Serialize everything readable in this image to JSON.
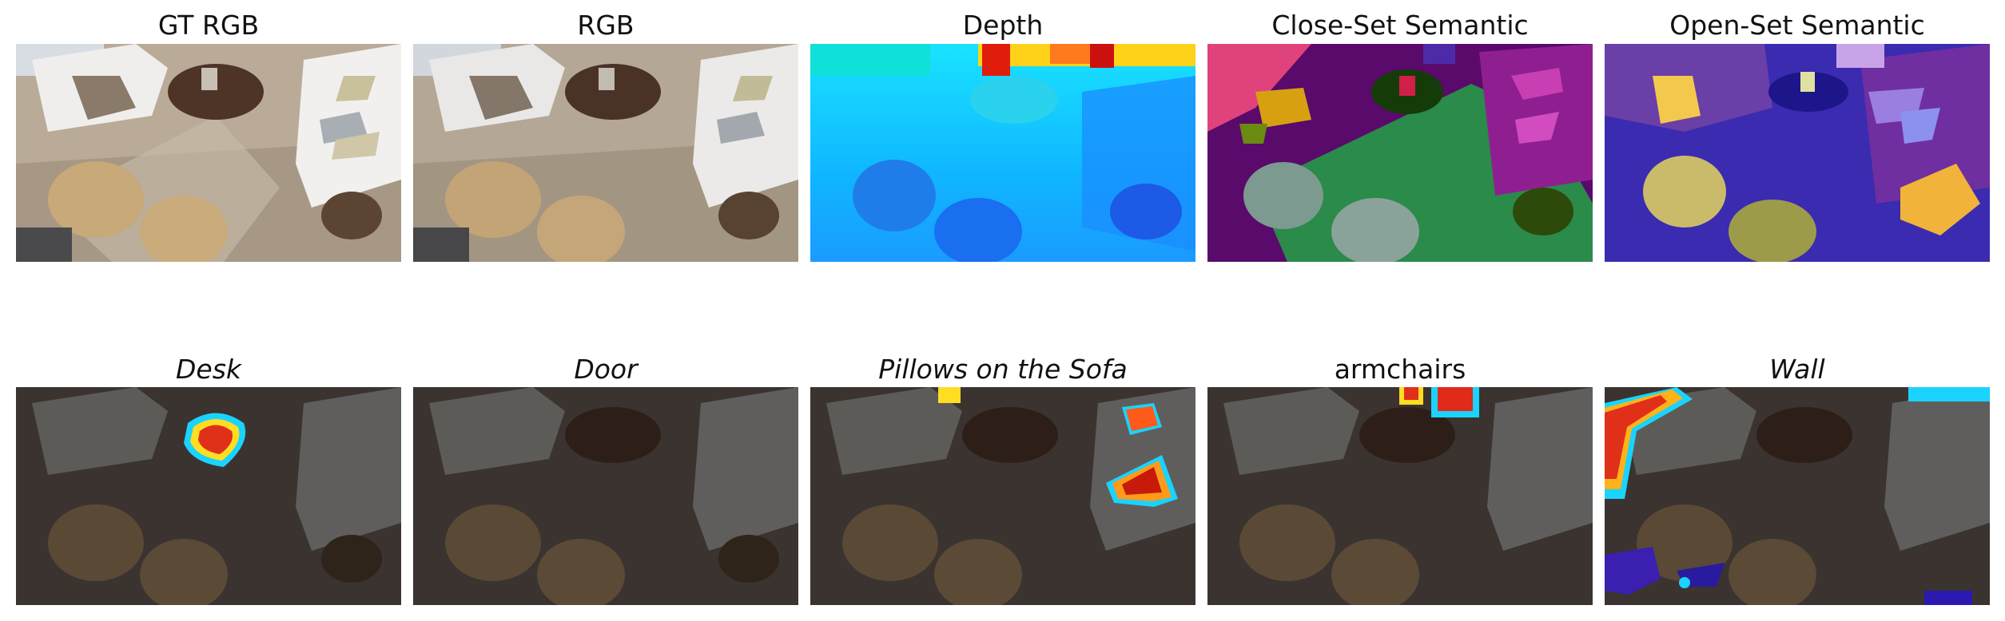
{
  "top_row": [
    {
      "title": "GT RGB",
      "italic": false,
      "kind": "rgb"
    },
    {
      "title": "RGB",
      "italic": false,
      "kind": "rgb"
    },
    {
      "title": "Depth",
      "italic": false,
      "kind": "depth"
    },
    {
      "title": "Close-Set Semantic",
      "italic": false,
      "kind": "closeset"
    },
    {
      "title": "Open-Set Semantic",
      "italic": false,
      "kind": "openset"
    }
  ],
  "bottom_row": [
    {
      "title": "Desk",
      "italic": true,
      "query": "desk"
    },
    {
      "title": "Door",
      "italic": true,
      "query": "door"
    },
    {
      "title": "Pillows on the Sofa",
      "italic": true,
      "query": "pillows"
    },
    {
      "title": "armchairs",
      "italic": false,
      "query": "armchairs"
    },
    {
      "title": "Wall",
      "italic": true,
      "query": "wall"
    }
  ]
}
